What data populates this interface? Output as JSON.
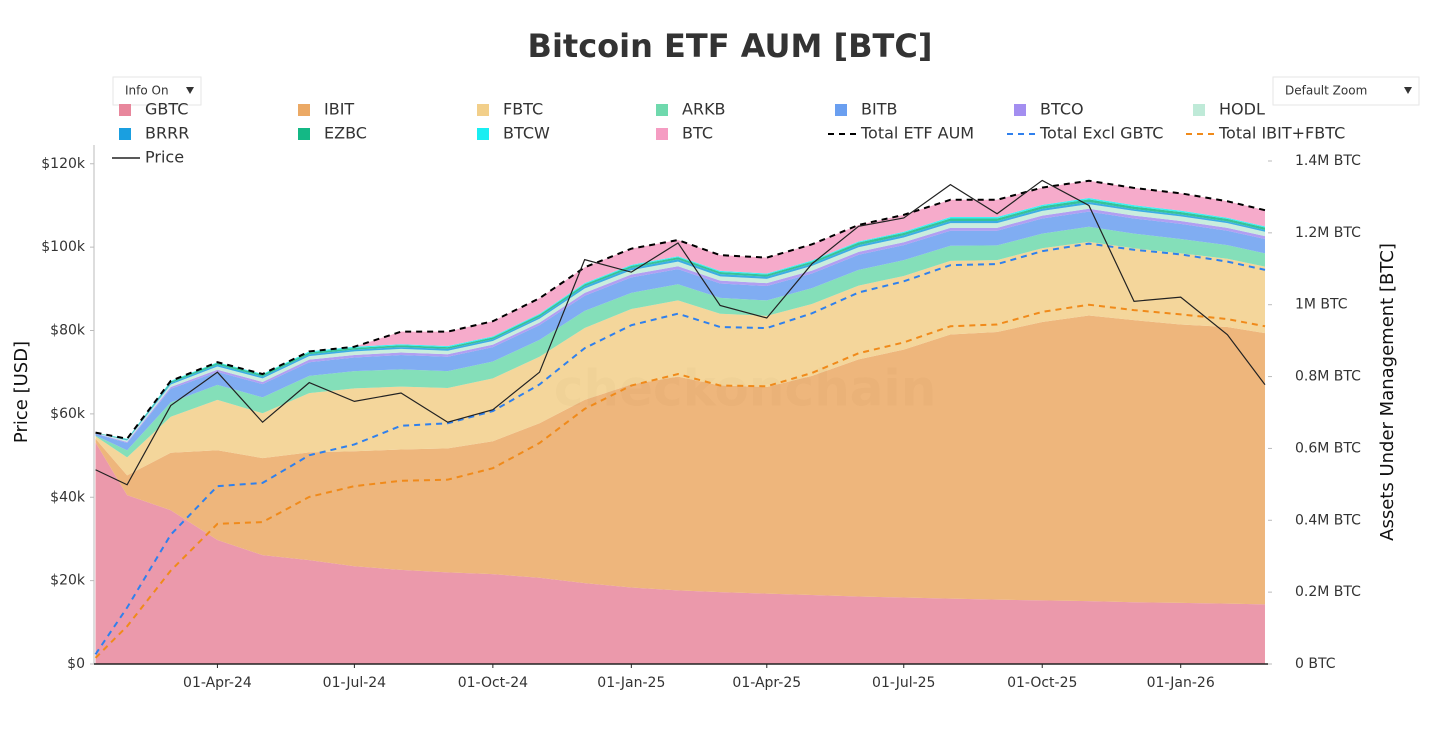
{
  "chart_data": {
    "type": "area",
    "title": "Bitcoin ETF AUM [BTC]",
    "watermark": "checkonchain",
    "controls": [
      "Info On",
      "Default Zoom"
    ],
    "ylabel": "Price [USD]",
    "y2label": "Assets Under Management [BTC]",
    "x": [
      "2024-01-11",
      "2024-02-01",
      "2024-03-01",
      "2024-04-01",
      "2024-05-01",
      "2024-06-01",
      "2024-07-01",
      "2024-08-01",
      "2024-09-01",
      "2024-10-01",
      "2024-11-01",
      "2024-12-01",
      "2025-01-01",
      "2025-02-01",
      "2025-03-01",
      "2025-04-01",
      "2025-05-01",
      "2025-06-01",
      "2025-07-01",
      "2025-08-01",
      "2025-09-01",
      "2025-10-01",
      "2025-11-01",
      "2025-12-01",
      "2026-01-01",
      "2026-02-01",
      "2026-02-26"
    ],
    "xlim": [
      "2024-01-10",
      "2026-02-28"
    ],
    "xticks": [
      {
        "value": "2024-04-01",
        "label": "01-Apr-24"
      },
      {
        "value": "2024-07-01",
        "label": "01-Jul-24"
      },
      {
        "value": "2024-10-01",
        "label": "01-Oct-24"
      },
      {
        "value": "2025-01-01",
        "label": "01-Jan-25"
      },
      {
        "value": "2025-04-01",
        "label": "01-Apr-25"
      },
      {
        "value": "2025-07-01",
        "label": "01-Jul-25"
      },
      {
        "value": "2025-10-01",
        "label": "01-Oct-25"
      },
      {
        "value": "2026-01-01",
        "label": "01-Jan-26"
      }
    ],
    "ylim": [
      0,
      124500
    ],
    "yticks": [
      {
        "value": 0,
        "label": "$0"
      },
      {
        "value": 20000,
        "label": "$20k"
      },
      {
        "value": 40000,
        "label": "$40k"
      },
      {
        "value": 60000,
        "label": "$60k"
      },
      {
        "value": 80000,
        "label": "$80k"
      },
      {
        "value": 100000,
        "label": "$100k"
      },
      {
        "value": 120000,
        "label": "$120k"
      }
    ],
    "y2lim": [
      0,
      1444500
    ],
    "y2ticks": [
      {
        "value": 0,
        "label": "0 BTC"
      },
      {
        "value": 200000,
        "label": "0.2M BTC"
      },
      {
        "value": 400000,
        "label": "0.4M BTC"
      },
      {
        "value": 600000,
        "label": "0.6M BTC"
      },
      {
        "value": 800000,
        "label": "0.8M BTC"
      },
      {
        "value": 1000000,
        "label": "1M BTC"
      },
      {
        "value": 1200000,
        "label": "1.2M BTC"
      },
      {
        "value": 1400000,
        "label": "1.4M BTC"
      }
    ],
    "series": [
      {
        "name": "GBTC",
        "type": "area",
        "axis": "y2",
        "color": "#e8879c",
        "values": [
          617000,
          470000,
          428000,
          345000,
          303000,
          289000,
          272000,
          262000,
          255000,
          250000,
          240000,
          225000,
          213000,
          205000,
          200000,
          196000,
          192000,
          188000,
          185000,
          182000,
          179000,
          177000,
          175000,
          172000,
          170000,
          168000,
          166000
        ]
      },
      {
        "name": "IBIT",
        "type": "area",
        "axis": "y2",
        "color": "#eba965",
        "values": [
          10000,
          55000,
          160000,
          250000,
          270000,
          300000,
          320000,
          335000,
          345000,
          370000,
          430000,
          510000,
          565000,
          595000,
          575000,
          575000,
          610000,
          660000,
          690000,
          735000,
          745000,
          775000,
          795000,
          785000,
          775000,
          770000,
          755000
        ]
      },
      {
        "name": "FBTC",
        "type": "area",
        "axis": "y2",
        "color": "#f2cf8a",
        "values": [
          7000,
          50000,
          100000,
          140000,
          125000,
          165000,
          175000,
          175000,
          168000,
          175000,
          185000,
          200000,
          210000,
          212000,
          200000,
          198000,
          200000,
          205000,
          205000,
          205000,
          200000,
          205000,
          205000,
          200000,
          198000,
          190000,
          185000
        ]
      },
      {
        "name": "ARKB",
        "type": "area",
        "axis": "y2",
        "color": "#6fd9ad",
        "values": [
          2000,
          20000,
          40000,
          42000,
          44000,
          48000,
          48000,
          48000,
          47000,
          47000,
          47000,
          48000,
          45000,
          45000,
          44000,
          43000,
          44000,
          44000,
          44000,
          42000,
          41000,
          41000,
          42000,
          41000,
          40000,
          38000,
          37000
        ]
      },
      {
        "name": "BITB",
        "type": "area",
        "axis": "y2",
        "color": "#6a9ff0",
        "values": [
          5000,
          20000,
          38000,
          36000,
          37000,
          38000,
          38000,
          40000,
          40000,
          40000,
          41000,
          42000,
          43000,
          42000,
          40000,
          40000,
          41000,
          42000,
          42000,
          42000,
          41000,
          42000,
          42000,
          42000,
          42000,
          40000,
          40000
        ]
      },
      {
        "name": "BTCO",
        "type": "area",
        "axis": "y2",
        "color": "#a38ef0",
        "values": [
          1000,
          3000,
          5000,
          6000,
          6000,
          7000,
          7000,
          7000,
          7000,
          7000,
          7000,
          8000,
          8000,
          8000,
          8000,
          8000,
          8000,
          8000,
          8000,
          8000,
          8000,
          8000,
          8000,
          8000,
          8000,
          8000,
          8000
        ]
      },
      {
        "name": "HODL",
        "type": "area",
        "axis": "y2",
        "color": "#bfead8",
        "values": [
          1000,
          4000,
          7000,
          9000,
          10000,
          10000,
          10000,
          10000,
          10000,
          10000,
          11000,
          12000,
          12000,
          13000,
          12000,
          12000,
          13000,
          13000,
          13000,
          13000,
          13000,
          13000,
          13000,
          13000,
          13000,
          13000,
          12000
        ]
      },
      {
        "name": "BRRR",
        "type": "area",
        "axis": "y2",
        "color": "#1a9fe0",
        "values": [
          300,
          2000,
          4000,
          5000,
          5000,
          5000,
          5000,
          5000,
          5000,
          5000,
          5000,
          6000,
          6000,
          6000,
          6000,
          6000,
          6000,
          6000,
          6000,
          6000,
          6000,
          6000,
          6000,
          5000,
          5000,
          5000,
          5000
        ]
      },
      {
        "name": "EZBC",
        "type": "area",
        "axis": "y2",
        "color": "#14b885",
        "values": [
          500,
          2000,
          4000,
          5000,
          5000,
          5000,
          5000,
          5000,
          5000,
          5000,
          6000,
          6000,
          6000,
          6000,
          6000,
          6000,
          6000,
          7000,
          7000,
          7000,
          7000,
          7000,
          7000,
          7000,
          7000,
          7000,
          7000
        ]
      },
      {
        "name": "BTCW",
        "type": "area",
        "axis": "y2",
        "color": "#19eef2",
        "values": [
          200,
          1000,
          2000,
          2000,
          2000,
          3000,
          3000,
          3000,
          3000,
          3000,
          3000,
          3000,
          3000,
          3000,
          3000,
          3000,
          3000,
          3000,
          3000,
          4000,
          4000,
          4000,
          4000,
          4000,
          4000,
          3000,
          3000
        ]
      },
      {
        "name": "BTC",
        "type": "area",
        "axis": "y2",
        "color": "#f59cc2",
        "values": [
          0,
          0,
          0,
          0,
          0,
          0,
          0,
          35000,
          40000,
          42000,
          43000,
          44000,
          45000,
          45000,
          44000,
          44000,
          45000,
          46000,
          47000,
          48000,
          48000,
          48000,
          48000,
          48000,
          48000,
          46000,
          45000
        ]
      },
      {
        "name": "Total ETF AUM",
        "type": "line",
        "axis": "y2",
        "dash": true,
        "color": "#000000",
        "values": [
          644000,
          627000,
          788000,
          840000,
          807000,
          870000,
          883000,
          925000,
          925000,
          954000,
          1018000,
          1104000,
          1156000,
          1180000,
          1138000,
          1131000,
          1168000,
          1222000,
          1250000,
          1292000,
          1292000,
          1326000,
          1345000,
          1325000,
          1310000,
          1288000,
          1263000
        ]
      },
      {
        "name": "Total Excl GBTC",
        "type": "line",
        "axis": "y2",
        "dash": true,
        "color": "#2f80ed",
        "values": [
          27000,
          157000,
          360000,
          495000,
          504000,
          581000,
          611000,
          663000,
          670000,
          704000,
          778000,
          879000,
          943000,
          975000,
          938000,
          935000,
          976000,
          1034000,
          1065000,
          1110000,
          1113000,
          1149000,
          1170000,
          1153000,
          1140000,
          1120000,
          1097000
        ]
      },
      {
        "name": "Total IBIT+FBTC",
        "type": "line",
        "axis": "y2",
        "dash": true,
        "color": "#f08a1a",
        "values": [
          17000,
          105000,
          260000,
          390000,
          395000,
          465000,
          495000,
          510000,
          513000,
          545000,
          615000,
          710000,
          775000,
          807000,
          775000,
          773000,
          810000,
          865000,
          895000,
          940000,
          945000,
          980000,
          1000000,
          985000,
          973000,
          960000,
          940000
        ]
      },
      {
        "name": "Price",
        "type": "line",
        "color": "#222222",
        "values": [
          46600,
          43000,
          62000,
          70000,
          58000,
          67500,
          63000,
          65000,
          58000,
          61000,
          70000,
          97000,
          94000,
          101000,
          86000,
          83000,
          96000,
          105000,
          107000,
          115000,
          108000,
          116000,
          110000,
          87000,
          88000,
          79000,
          67000
        ]
      }
    ]
  }
}
